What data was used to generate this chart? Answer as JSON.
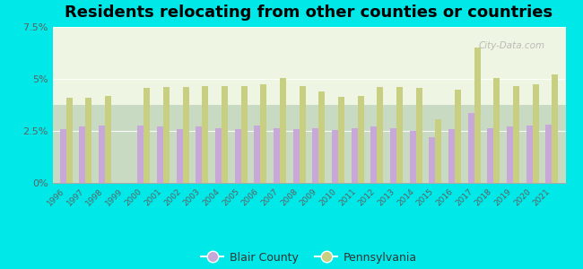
{
  "title": "Residents relocating from other counties or countries",
  "years": [
    1996,
    1997,
    1998,
    1999,
    2000,
    2001,
    2002,
    2003,
    2004,
    2005,
    2006,
    2007,
    2008,
    2009,
    2010,
    2011,
    2012,
    2013,
    2014,
    2015,
    2016,
    2017,
    2018,
    2019,
    2020,
    2021
  ],
  "blair_county": [
    2.6,
    2.7,
    2.75,
    0,
    2.75,
    2.7,
    2.6,
    2.7,
    2.65,
    2.6,
    2.75,
    2.65,
    2.6,
    2.65,
    2.55,
    2.65,
    2.7,
    2.65,
    2.5,
    2.2,
    2.6,
    3.35,
    2.65,
    2.7,
    2.75,
    2.8
  ],
  "pennsylvania": [
    4.1,
    4.1,
    4.2,
    0,
    4.55,
    4.6,
    4.6,
    4.65,
    4.65,
    4.65,
    4.75,
    5.05,
    4.65,
    4.4,
    4.15,
    4.2,
    4.6,
    4.6,
    4.55,
    3.05,
    4.5,
    6.5,
    5.05,
    4.65,
    4.75,
    5.2
  ],
  "blair_color": "#c8a8d8",
  "pa_color": "#c8cf80",
  "bg_color": "#00e8e8",
  "plot_bg": "#edf5e0",
  "ylim_max": 7.5,
  "yticks": [
    0,
    2.5,
    5.0,
    7.5
  ],
  "ytick_labels": [
    "0%",
    "2.5%",
    "5%",
    "7.5%"
  ],
  "bar_width": 0.32,
  "title_fontsize": 13,
  "figsize": [
    6.5,
    3.0
  ],
  "dpi": 100,
  "legend_label1": "Blair County",
  "legend_label2": "Pennsylvania",
  "watermark": "City-Data.com"
}
